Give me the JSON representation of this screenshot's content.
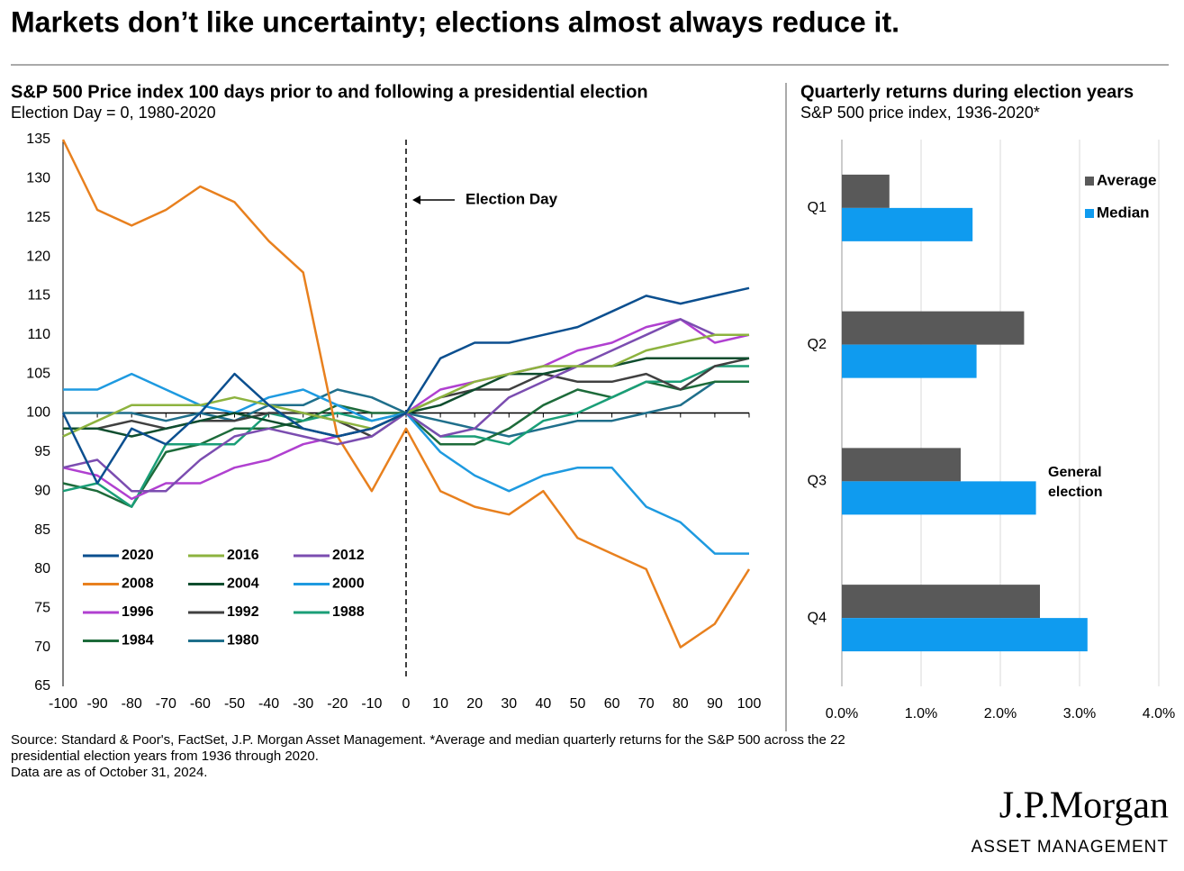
{
  "title": "Markets don’t like uncertainty; elections almost always reduce it.",
  "chart_data": [
    {
      "type": "line",
      "title": "S&P 500 Price index 100 days prior to and following a presidential election",
      "subtitle": "Election Day = 0, 1980-2020",
      "annotation": "Election Day",
      "x": [
        -100,
        -90,
        -80,
        -70,
        -60,
        -50,
        -40,
        -30,
        -20,
        -10,
        0,
        10,
        20,
        30,
        40,
        50,
        60,
        70,
        80,
        90,
        100
      ],
      "xlim": [
        -100,
        100
      ],
      "xticks": [
        -100,
        -90,
        -80,
        -70,
        -60,
        -50,
        -40,
        -30,
        -20,
        -10,
        0,
        10,
        20,
        30,
        40,
        50,
        60,
        70,
        80,
        90,
        100
      ],
      "ylim": [
        65,
        135
      ],
      "yticks": [
        65,
        70,
        75,
        80,
        85,
        90,
        95,
        100,
        105,
        110,
        115,
        120,
        125,
        130,
        135
      ],
      "baseline": 100,
      "series": [
        {
          "name": "2020",
          "color": "#0b4f8f",
          "values": [
            100,
            91,
            98,
            96,
            100,
            105,
            101,
            98,
            97,
            98,
            100,
            107,
            109,
            109,
            110,
            111,
            113,
            115,
            114,
            115,
            116
          ]
        },
        {
          "name": "2016",
          "color": "#8db33f",
          "values": [
            97,
            99,
            101,
            101,
            101,
            102,
            101,
            100,
            99,
            98,
            100,
            102,
            104,
            105,
            106,
            106,
            106,
            108,
            109,
            110,
            110
          ]
        },
        {
          "name": "2012",
          "color": "#7b4db0",
          "values": [
            93,
            94,
            90,
            90,
            94,
            97,
            98,
            97,
            96,
            97,
            100,
            97,
            98,
            102,
            104,
            106,
            108,
            110,
            112,
            110,
            110
          ]
        },
        {
          "name": "2008",
          "color": "#e8801e",
          "values": [
            135,
            126,
            124,
            126,
            129,
            127,
            122,
            118,
            97,
            90,
            98,
            90,
            88,
            87,
            90,
            84,
            82,
            80,
            70,
            73,
            80
          ]
        },
        {
          "name": "2004",
          "color": "#0e4d2e",
          "values": [
            98,
            98,
            97,
            98,
            99,
            100,
            99,
            98,
            97,
            98,
            100,
            101,
            103,
            105,
            105,
            106,
            106,
            107,
            107,
            107,
            107
          ]
        },
        {
          "name": "2000",
          "color": "#1e9ae0",
          "values": [
            103,
            103,
            105,
            103,
            101,
            100,
            102,
            103,
            101,
            99,
            100,
            95,
            92,
            90,
            92,
            93,
            93,
            88,
            86,
            82,
            82
          ]
        },
        {
          "name": "1996",
          "color": "#b040d0",
          "values": [
            93,
            92,
            89,
            91,
            91,
            93,
            94,
            96,
            97,
            98,
            100,
            103,
            104,
            105,
            106,
            108,
            109,
            111,
            112,
            109,
            110
          ]
        },
        {
          "name": "1992",
          "color": "#404040",
          "values": [
            98,
            98,
            99,
            98,
            99,
            99,
            100,
            100,
            99,
            97,
            100,
            102,
            103,
            103,
            105,
            104,
            104,
            105,
            103,
            106,
            107
          ]
        },
        {
          "name": "1988",
          "color": "#1a9e77",
          "values": [
            90,
            91,
            88,
            96,
            96,
            96,
            100,
            99,
            100,
            99,
            100,
            97,
            97,
            96,
            99,
            100,
            102,
            104,
            104,
            106,
            106
          ]
        },
        {
          "name": "1984",
          "color": "#1d6b3a",
          "values": [
            91,
            90,
            88,
            95,
            96,
            98,
            98,
            99,
            101,
            100,
            100,
            96,
            96,
            98,
            101,
            103,
            102,
            104,
            103,
            104,
            104
          ]
        },
        {
          "name": "1980",
          "color": "#1f6f8b",
          "values": [
            100,
            100,
            100,
            99,
            100,
            99,
            101,
            101,
            103,
            102,
            100,
            99,
            98,
            97,
            98,
            99,
            99,
            100,
            101,
            104,
            104
          ]
        }
      ]
    },
    {
      "type": "hbar",
      "title": "Quarterly returns during election years",
      "subtitle": "S&P 500 price index, 1936-2020*",
      "annotation": "General election",
      "categories": [
        "Q1",
        "Q2",
        "Q3",
        "Q4"
      ],
      "xlim": [
        0,
        4
      ],
      "xticks": [
        {
          "value": 0,
          "label": "0.0%"
        },
        {
          "value": 1,
          "label": "1.0%"
        },
        {
          "value": 2,
          "label": "2.0%"
        },
        {
          "value": 3,
          "label": "3.0%"
        },
        {
          "value": 4,
          "label": "4.0%"
        }
      ],
      "grid": true,
      "series": [
        {
          "name": "Average",
          "color": "#595959",
          "values": [
            0.6,
            2.3,
            1.5,
            2.5
          ]
        },
        {
          "name": "Median",
          "color": "#0f9bef",
          "values": [
            1.65,
            1.7,
            2.45,
            3.1
          ]
        }
      ]
    }
  ],
  "footnote": [
    "Source: Standard & Poor's, FactSet, J.P. Morgan Asset Management. *Average and median quarterly returns for the S&P 500 across the 22",
    "presidential election years from 1936 through 2020.",
    "Data are as of October 31, 2024."
  ],
  "logo": {
    "name": "J.P.Morgan",
    "tagline": "ASSET MANAGEMENT"
  }
}
